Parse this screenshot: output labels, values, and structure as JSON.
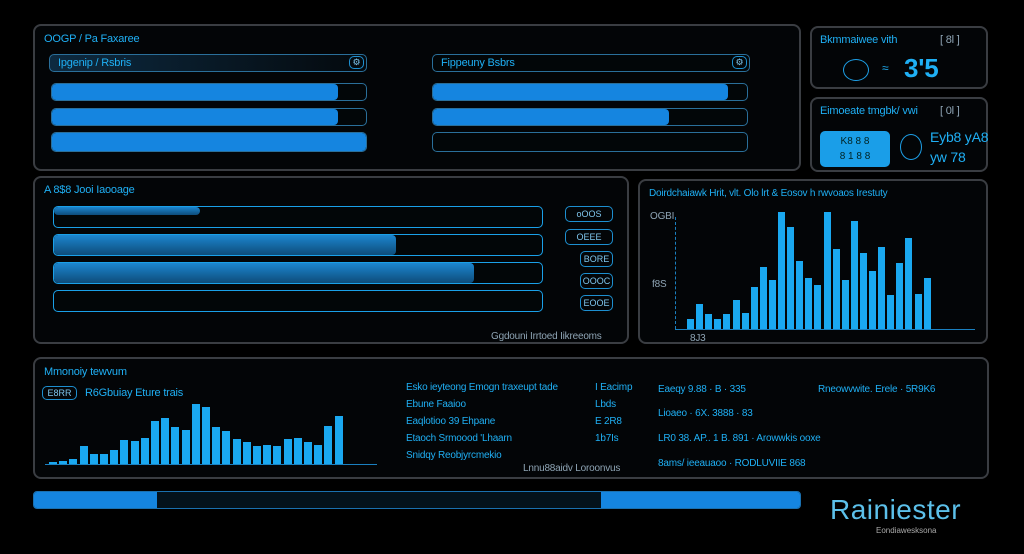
{
  "panel_a": {
    "title": "OOGP / Pa Faxaree",
    "left": {
      "header": "Ipgenip / Rsbris",
      "progress": [
        0.91,
        0.91,
        1.0
      ]
    },
    "right": {
      "header": "Fippeuny Bsbrs",
      "progress": [
        0.94,
        0.75,
        0.0
      ]
    }
  },
  "panel_b": {
    "title": "Bkmmaiwee vith",
    "badge": "[ 8l ]",
    "value": "3'5"
  },
  "panel_c": {
    "title": "Eimoeate tmgbk/ vwi",
    "badge": "[ 0l ]",
    "box_line1": "K8 8 8",
    "box_line2": "8 1 8 8",
    "value_line1": "Eyb8 yA8",
    "value_line2": "yw 78"
  },
  "panel_d": {
    "title": "A 8$8 Jooi Iaooage",
    "progress": [
      0.3,
      0.7,
      0.86,
      0.0
    ],
    "buttons": [
      "oOOS",
      "OEEE",
      "BORE",
      "OOOC",
      "EOOE"
    ],
    "footer": "Ggdouni Irrtoed Iikreeoms"
  },
  "chart_data": [
    {
      "type": "bar",
      "title": "Doirdchaiawk Hrit, vlt. Olo lrt & Eosov h rwvoaos Irestuty",
      "ytick_labels": [
        "OGBI",
        "f8S"
      ],
      "xtick_labels": [
        "8J3"
      ],
      "grid": false,
      "values": [
        8.5,
        21.7,
        12.5,
        8.5,
        12.5,
        25,
        14,
        36,
        53,
        42,
        100,
        87,
        58,
        44,
        38,
        100,
        68,
        42,
        92,
        65,
        50,
        70,
        29,
        56,
        78,
        30,
        44
      ],
      "ylim": [
        0,
        100
      ],
      "color": "#1aa8f0"
    },
    {
      "type": "bar",
      "title": "Mmonoiy tewvum",
      "subtitle": "R6Gbuiay Eture trais",
      "grid": false,
      "values": [
        6,
        10,
        14,
        55,
        32,
        32,
        43,
        73,
        72,
        79,
        131,
        142,
        113,
        104,
        185,
        175,
        112,
        100,
        76,
        67,
        54,
        57,
        56,
        77,
        81,
        68,
        58,
        117,
        147
      ],
      "ylim": [
        0,
        190
      ],
      "color": "#1aa8f0"
    }
  ],
  "panel_f": {
    "title": "Mmonoiy tewvum",
    "button": "E8RR",
    "subtitle": "R6Gbuiay Eture trais",
    "list": [
      {
        "label": "Esko ieyteong Emogn traxeupt tade",
        "value": "I Eacimp"
      },
      {
        "label": "Ebune Faaioo",
        "value": "Lbds"
      },
      {
        "label": "Eaqlotioo 39 Ehpane",
        "value": "E 2R8"
      },
      {
        "label": "Etaoch Srmoood 'Lhaarn",
        "value": "1b7Is"
      },
      {
        "label": "Snidqy Reobjyrcmekio",
        "value": ""
      }
    ],
    "list_footer": "Lnnu88aidv Loroonvus",
    "stats": [
      "Eaeqy 9.88 · B · 335",
      "Lioaeo · 6X. 3888 · 83",
      "LR0 38. AP.. 1 B. 891 · Arowwkis ooxe",
      "8ams/ ieeauaoo · RODLUVIIE 868"
    ],
    "stat_right": "Rneowvwite. Erele · 5R9K6"
  },
  "footer": {
    "progress_left": 0.16,
    "progress_right_start": 0.74
  },
  "logo": {
    "name": "Rainiester",
    "tagline": "Eondiawesksona"
  }
}
